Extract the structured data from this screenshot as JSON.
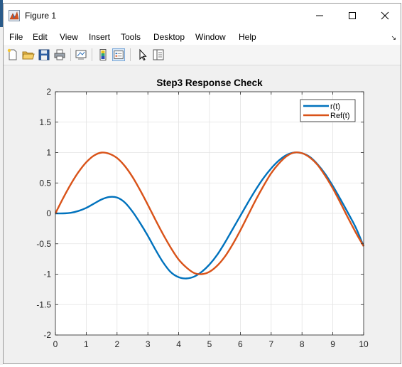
{
  "window": {
    "title": "Figure 1",
    "minimize_glyph": "—",
    "maximize_glyph": "☐",
    "close_glyph": "✕"
  },
  "menu": {
    "items": [
      "File",
      "Edit",
      "View",
      "Insert",
      "Tools",
      "Desktop",
      "Window",
      "Help"
    ],
    "overflow_glyph": "↘"
  },
  "toolbar": {
    "icons": [
      "new-figure-icon",
      "open-file-icon",
      "save-icon",
      "print-icon",
      "link-plot-icon",
      "insert-colorbar-icon",
      "insert-legend-icon",
      "edit-plot-arrow-icon",
      "property-inspector-icon"
    ]
  },
  "colors": {
    "series_r": "#0072BD",
    "series_ref": "#D95319",
    "grid": "#e3e3e3",
    "axes": "#262626"
  },
  "chart_data": {
    "type": "line",
    "title": "Step3 Response Check",
    "xlabel": "",
    "ylabel": "",
    "xlim": [
      0,
      10
    ],
    "ylim": [
      -2,
      2
    ],
    "xticks": [
      0,
      1,
      2,
      3,
      4,
      5,
      6,
      7,
      8,
      9,
      10
    ],
    "yticks": [
      -2,
      -1.5,
      -1,
      -0.5,
      0,
      0.5,
      1,
      1.5,
      2
    ],
    "grid": true,
    "legend_position": "top-right",
    "series": [
      {
        "name": "r(t)",
        "x": [
          0,
          0.25,
          0.5,
          0.75,
          1,
          1.25,
          1.5,
          1.75,
          2,
          2.25,
          2.5,
          2.75,
          3,
          3.25,
          3.5,
          3.75,
          4,
          4.25,
          4.5,
          4.75,
          5,
          5.25,
          5.5,
          5.75,
          6,
          6.25,
          6.5,
          6.75,
          7,
          7.25,
          7.5,
          7.75,
          8,
          8.25,
          8.5,
          8.75,
          9,
          9.25,
          9.5,
          9.75,
          10
        ],
        "values": [
          0,
          0.0,
          0.01,
          0.04,
          0.09,
          0.16,
          0.23,
          0.27,
          0.26,
          0.18,
          0.03,
          -0.16,
          -0.37,
          -0.6,
          -0.81,
          -0.97,
          -1.05,
          -1.07,
          -1.04,
          -0.96,
          -0.84,
          -0.68,
          -0.48,
          -0.26,
          -0.04,
          0.18,
          0.39,
          0.58,
          0.74,
          0.87,
          0.96,
          1.0,
          0.99,
          0.93,
          0.81,
          0.65,
          0.45,
          0.23,
          0.0,
          -0.24,
          -0.54
        ]
      },
      {
        "name": "Ref(t)",
        "x": [
          0,
          0.25,
          0.5,
          0.75,
          1,
          1.25,
          1.5,
          1.75,
          2,
          2.25,
          2.5,
          2.75,
          3,
          3.25,
          3.5,
          3.75,
          4,
          4.25,
          4.5,
          4.75,
          5,
          5.25,
          5.5,
          5.75,
          6,
          6.25,
          6.5,
          6.75,
          7,
          7.25,
          7.5,
          7.75,
          8,
          8.25,
          8.5,
          8.75,
          9,
          9.25,
          9.5,
          9.75,
          10
        ],
        "values": [
          0,
          0.25,
          0.48,
          0.68,
          0.84,
          0.95,
          1.0,
          0.98,
          0.91,
          0.78,
          0.6,
          0.38,
          0.14,
          -0.11,
          -0.35,
          -0.57,
          -0.76,
          -0.89,
          -0.98,
          -1.0,
          -0.96,
          -0.86,
          -0.71,
          -0.51,
          -0.28,
          -0.03,
          0.22,
          0.45,
          0.66,
          0.82,
          0.94,
          1.0,
          0.99,
          0.92,
          0.8,
          0.62,
          0.41,
          0.17,
          -0.08,
          -0.32,
          -0.54
        ]
      }
    ]
  }
}
